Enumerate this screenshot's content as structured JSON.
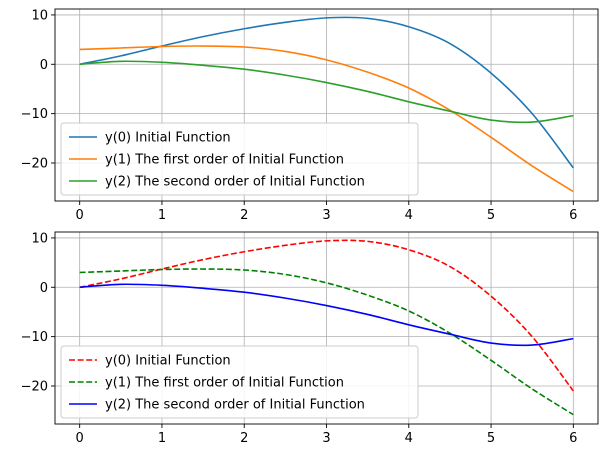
{
  "chart_data": [
    {
      "type": "line",
      "xlim": [
        -0.3,
        6.3
      ],
      "ylim": [
        -27.7,
        11.2
      ],
      "xticks": [
        0,
        1,
        2,
        3,
        4,
        5,
        6
      ],
      "yticks": [
        10,
        0,
        -10,
        -20
      ],
      "xtick_labels": [
        "0",
        "1",
        "2",
        "3",
        "4",
        "5",
        "6"
      ],
      "ytick_labels": [
        "10",
        "0",
        "−10",
        "−20"
      ],
      "grid": true,
      "legend_position": "lower-left",
      "x": [
        0,
        0.5,
        1,
        1.5,
        2,
        2.5,
        3,
        3.5,
        4,
        4.5,
        5,
        5.5,
        6
      ],
      "series": [
        {
          "name": "y(0) Initial Function",
          "color": "#1f77b4",
          "dash": "solid",
          "values": [
            0,
            1.7,
            3.7,
            5.6,
            7.2,
            8.5,
            9.4,
            9.3,
            7.6,
            4.2,
            -1.8,
            -10.0,
            -21.0
          ]
        },
        {
          "name": "y(1) The first order of Initial Function",
          "color": "#ff7f0e",
          "dash": "solid",
          "values": [
            3.0,
            3.3,
            3.6,
            3.7,
            3.5,
            2.6,
            0.9,
            -1.6,
            -4.8,
            -9.3,
            -14.8,
            -20.6,
            -25.8
          ]
        },
        {
          "name": "y(2) The second order of Initial Function",
          "color": "#2ca02c",
          "dash": "solid",
          "values": [
            0,
            0.6,
            0.4,
            -0.2,
            -1.0,
            -2.2,
            -3.7,
            -5.5,
            -7.6,
            -9.5,
            -11.3,
            -11.7,
            -10.4
          ]
        }
      ]
    },
    {
      "type": "line",
      "xlim": [
        -0.3,
        6.3
      ],
      "ylim": [
        -27.7,
        11.2
      ],
      "xticks": [
        0,
        1,
        2,
        3,
        4,
        5,
        6
      ],
      "yticks": [
        10,
        0,
        -10,
        -20
      ],
      "xtick_labels": [
        "0",
        "1",
        "2",
        "3",
        "4",
        "5",
        "6"
      ],
      "ytick_labels": [
        "10",
        "0",
        "−10",
        "−20"
      ],
      "grid": true,
      "legend_position": "lower-left",
      "x": [
        0,
        0.5,
        1,
        1.5,
        2,
        2.5,
        3,
        3.5,
        4,
        4.5,
        5,
        5.5,
        6
      ],
      "series": [
        {
          "name": "y(0) Initial Function",
          "color": "#ff0000",
          "dash": "dashed",
          "values": [
            0,
            1.7,
            3.7,
            5.6,
            7.2,
            8.5,
            9.4,
            9.3,
            7.6,
            4.2,
            -1.8,
            -10.0,
            -21.0
          ]
        },
        {
          "name": "y(1) The first order of Initial Function",
          "color": "#008000",
          "dash": "dashed",
          "values": [
            3.0,
            3.3,
            3.6,
            3.7,
            3.5,
            2.6,
            0.9,
            -1.6,
            -4.8,
            -9.3,
            -14.8,
            -20.6,
            -25.8
          ]
        },
        {
          "name": "y(2) The second order of Initial Function",
          "color": "#0000ff",
          "dash": "solid",
          "values": [
            0,
            0.6,
            0.4,
            -0.2,
            -1.0,
            -2.2,
            -3.7,
            -5.5,
            -7.6,
            -9.5,
            -11.3,
            -11.7,
            -10.4
          ]
        }
      ]
    }
  ]
}
